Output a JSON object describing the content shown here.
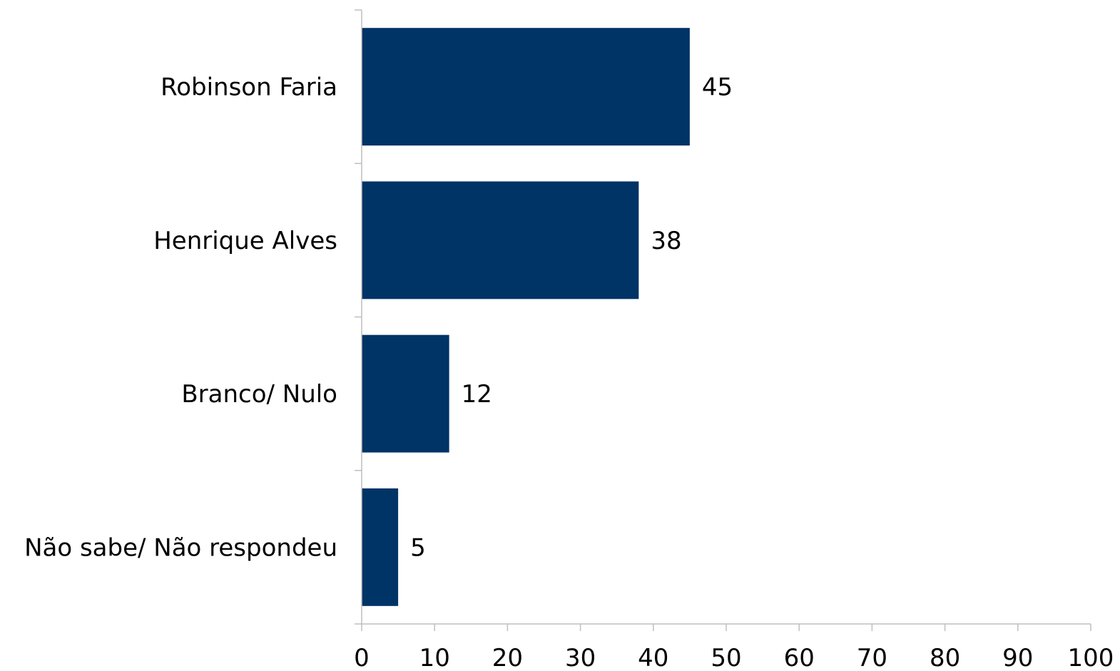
{
  "chart_data": {
    "type": "bar",
    "orientation": "horizontal",
    "categories": [
      "Robinson Faria",
      "Henrique Alves",
      "Branco/ Nulo",
      "Não sabe/ Não respondeu"
    ],
    "values": [
      45,
      38,
      12,
      5
    ],
    "data_labels": [
      "45",
      "38",
      "12",
      "5"
    ],
    "xlim": [
      0,
      100
    ],
    "x_ticks": [
      0,
      10,
      20,
      30,
      40,
      50,
      60,
      70,
      80,
      90,
      100
    ],
    "bar_color": "#003366",
    "axis_color": "#bfbfbf",
    "grid": false,
    "legend": "none"
  }
}
